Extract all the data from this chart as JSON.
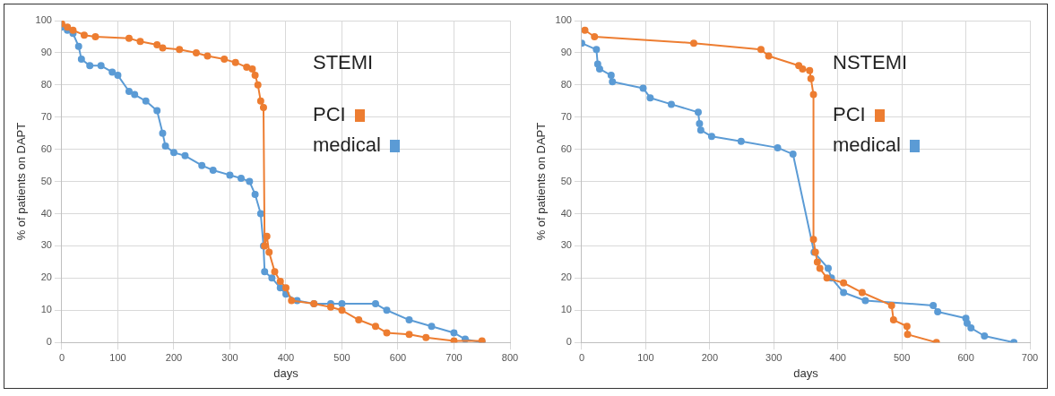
{
  "chart_data": [
    {
      "type": "line",
      "title": "STEMI",
      "xlabel": "days",
      "ylabel": "% of patients on DAPT",
      "legend": "top right",
      "grid": true,
      "marker": "circle",
      "xlim": [
        0,
        800
      ],
      "xticks": [
        0,
        100,
        200,
        300,
        400,
        500,
        600,
        700,
        800
      ],
      "ylim": [
        0,
        100
      ],
      "yticks": [
        0,
        10,
        20,
        30,
        40,
        50,
        60,
        70,
        80,
        90,
        100
      ],
      "series": [
        {
          "name": "PCI",
          "color": "#ed7d31",
          "x": [
            0,
            10,
            20,
            40,
            60,
            120,
            140,
            170,
            180,
            210,
            240,
            260,
            290,
            310,
            330,
            340,
            345,
            350,
            355,
            360,
            362,
            366,
            370,
            380,
            390,
            400,
            410,
            450,
            480,
            500,
            530,
            560,
            580,
            620,
            650,
            700,
            750
          ],
          "values": [
            99,
            98,
            97,
            95.5,
            95,
            94.5,
            93.5,
            92.5,
            91.5,
            91,
            90,
            89,
            88,
            87,
            85.5,
            85,
            83,
            80,
            75,
            73,
            30,
            33,
            28,
            22,
            19,
            17,
            13,
            12,
            11,
            10,
            7,
            5,
            3,
            2.5,
            1.5,
            0.5,
            0.5
          ]
        },
        {
          "name": "medical",
          "color": "#5b9bd5",
          "x": [
            0,
            10,
            20,
            30,
            35,
            50,
            70,
            90,
            100,
            120,
            130,
            150,
            170,
            180,
            185,
            200,
            220,
            250,
            270,
            300,
            320,
            335,
            345,
            355,
            360,
            362,
            375,
            390,
            400,
            420,
            450,
            480,
            500,
            560,
            580,
            620,
            660,
            700,
            720,
            750
          ],
          "values": [
            98,
            97,
            96,
            92,
            88,
            86,
            86,
            84,
            83,
            78,
            77,
            75,
            72,
            65,
            61,
            59,
            58,
            55,
            53.5,
            52,
            51,
            50,
            46,
            40,
            30,
            22,
            20,
            17,
            15,
            13,
            12,
            12,
            12,
            12,
            10,
            7,
            5,
            3,
            1,
            0
          ]
        }
      ]
    },
    {
      "type": "line",
      "title": "NSTEMI",
      "xlabel": "days",
      "ylabel": "% of patients on DAPT",
      "legend": "top right",
      "grid": true,
      "marker": "circle",
      "xlim": [
        0,
        700
      ],
      "xticks": [
        0,
        100,
        200,
        300,
        400,
        500,
        600,
        700
      ],
      "ylim": [
        0,
        100
      ],
      "yticks": [
        0,
        10,
        20,
        30,
        40,
        50,
        60,
        70,
        80,
        90,
        100
      ],
      "series": [
        {
          "name": "PCI",
          "color": "#ed7d31",
          "x": [
            5,
            20,
            175,
            280,
            292,
            339,
            345,
            356,
            358,
            362,
            362,
            365,
            368,
            372,
            383,
            409,
            438,
            484,
            487,
            508,
            509,
            554
          ],
          "values": [
            97,
            95,
            93,
            91,
            89,
            86,
            85,
            84.5,
            82,
            77,
            32,
            28,
            25,
            23,
            20,
            18.5,
            15.5,
            11.5,
            7,
            5,
            2.5,
            0
          ]
        },
        {
          "name": "medical",
          "color": "#5b9bd5",
          "x": [
            0,
            23,
            25,
            28,
            46,
            48,
            96,
            107,
            140,
            182,
            184,
            186,
            203,
            249,
            306,
            330,
            363,
            385,
            390,
            409,
            443,
            549,
            556,
            600,
            602,
            608,
            629,
            675
          ],
          "values": [
            93,
            91,
            86.5,
            85,
            83,
            81,
            79,
            76,
            74,
            71.5,
            68,
            66,
            64,
            62.5,
            60.5,
            58.5,
            28,
            23,
            20,
            15.5,
            13,
            11.5,
            9.5,
            7.5,
            6,
            4.5,
            2,
            0
          ]
        }
      ]
    }
  ]
}
